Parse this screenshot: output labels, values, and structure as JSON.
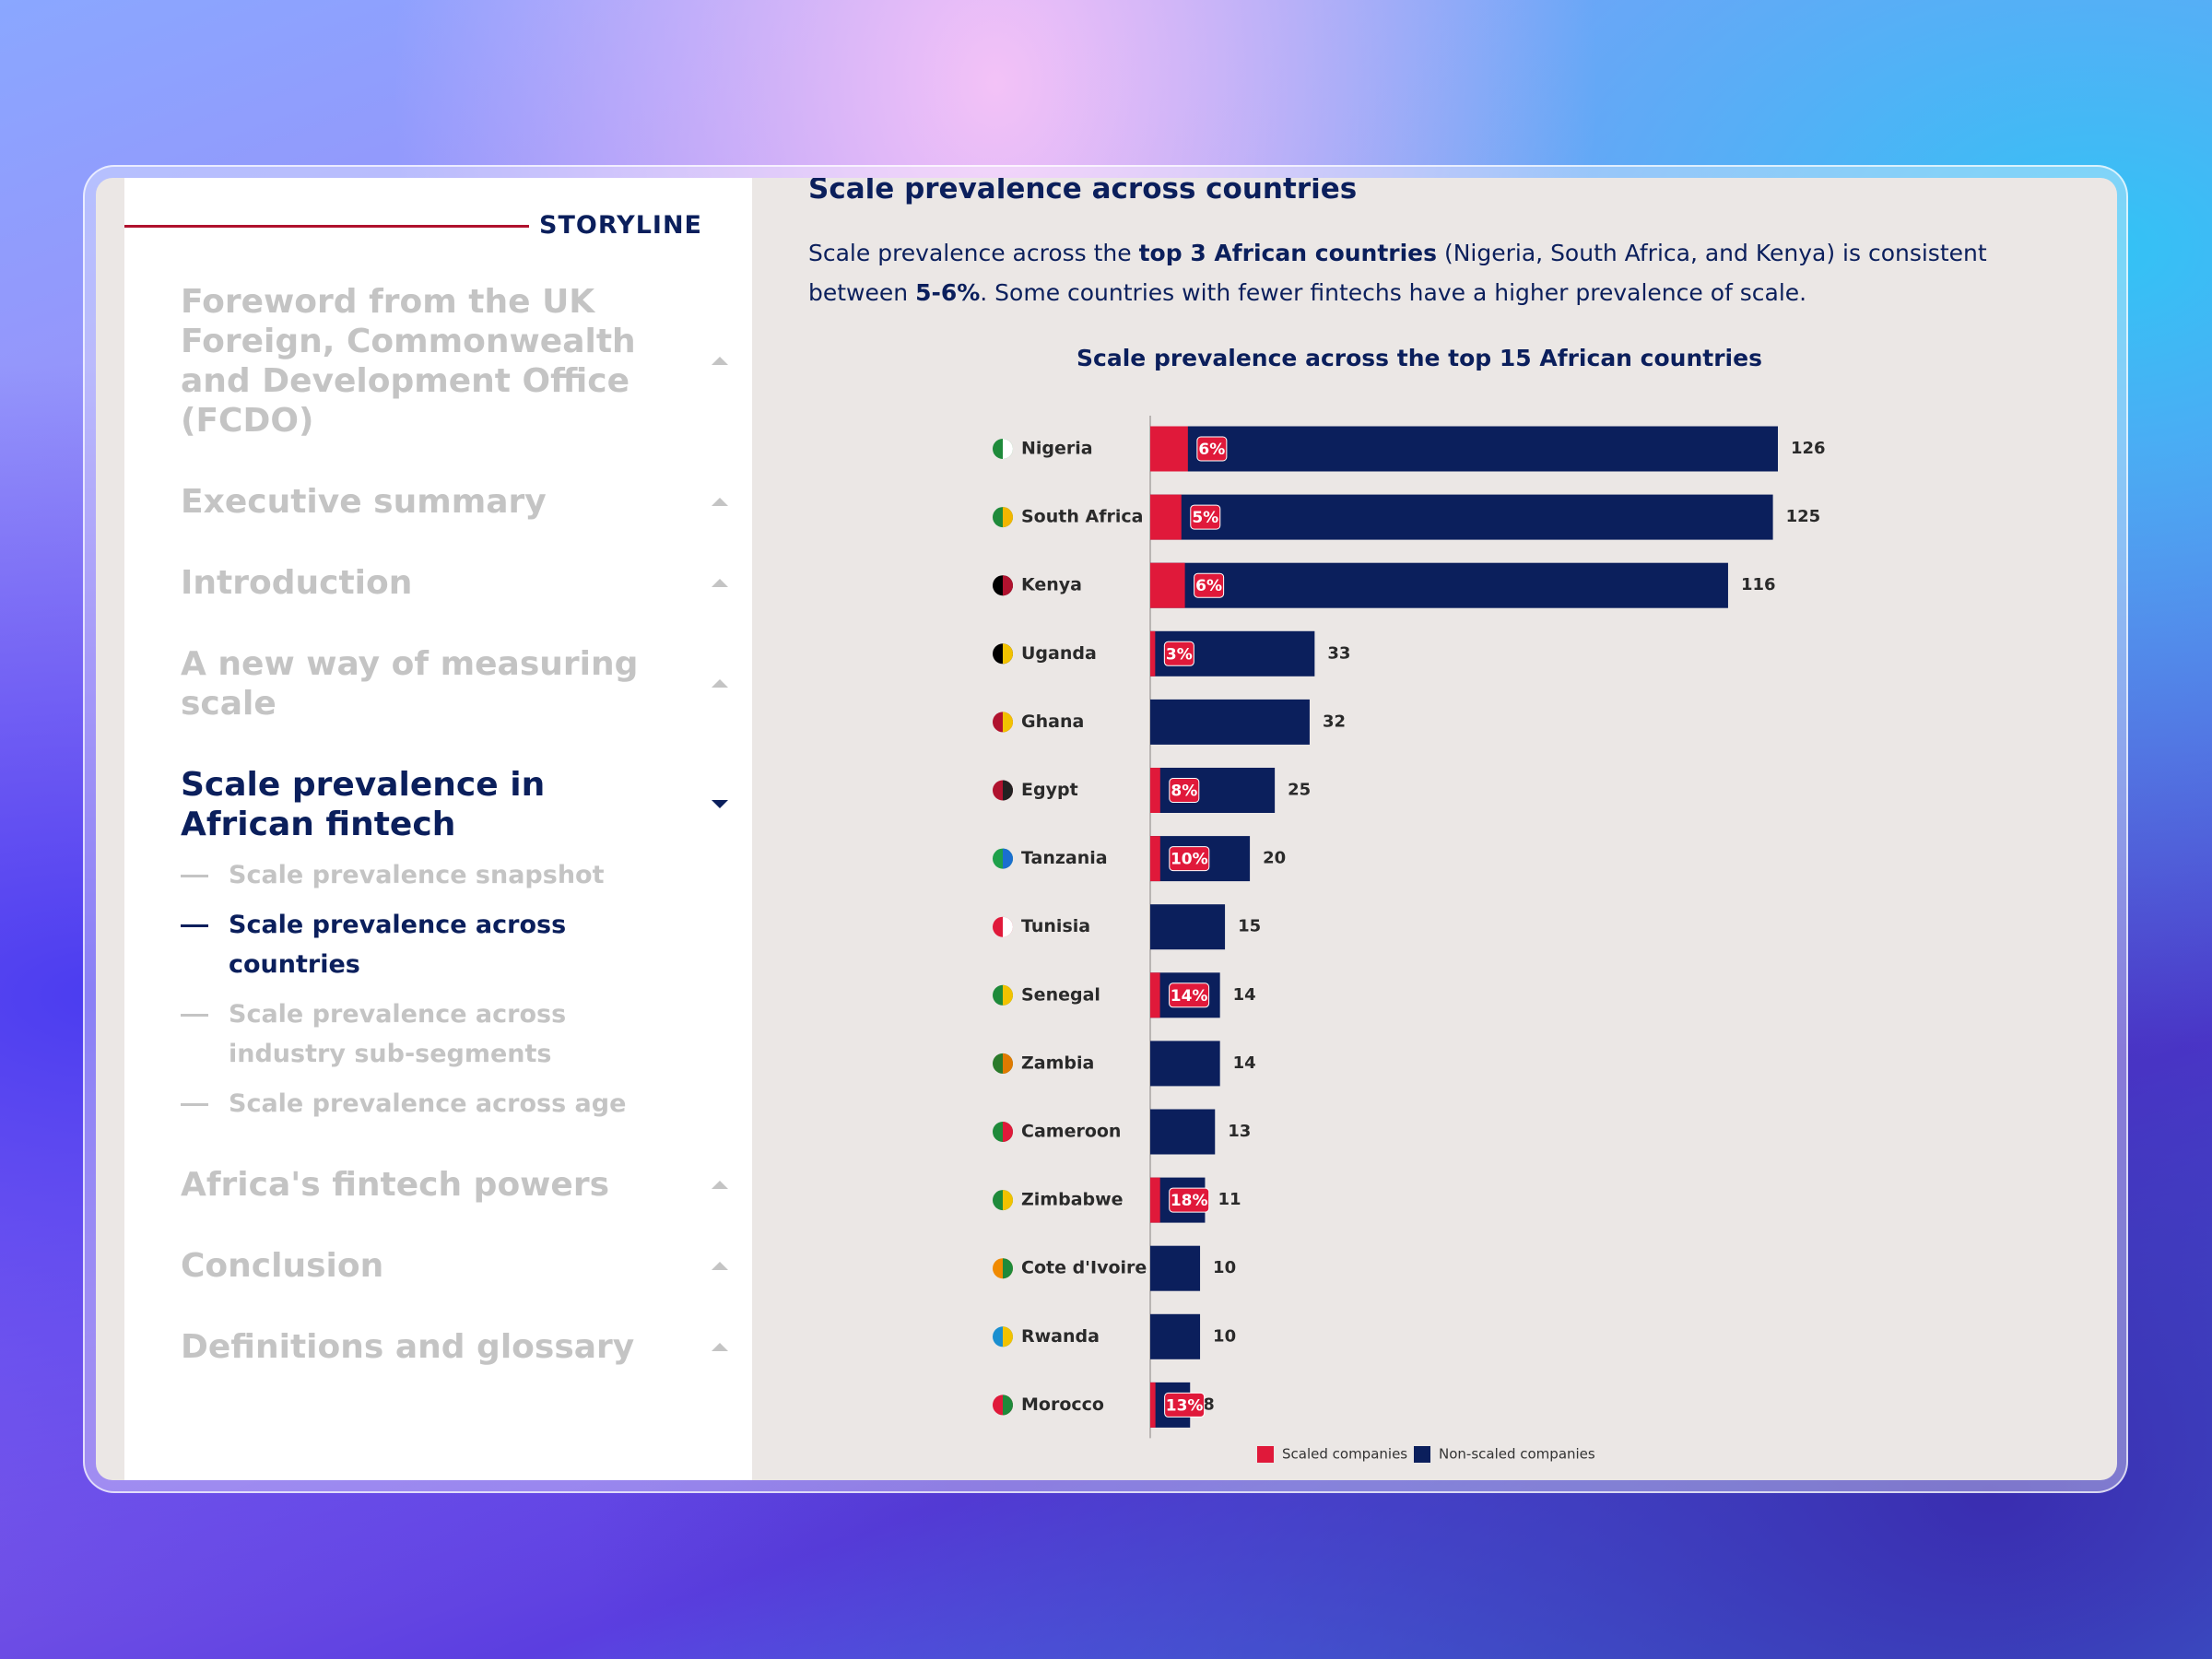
{
  "sidebar": {
    "heading": "STORYLINE",
    "items": [
      {
        "label": "Foreword from the UK Foreign, Commonwealth and Development Office (FCDO)",
        "active": false
      },
      {
        "label": "Executive summary",
        "active": false
      },
      {
        "label": "Introduction",
        "active": false
      },
      {
        "label": "A new way of measuring scale",
        "active": false
      },
      {
        "label": "Scale prevalence in African fintech",
        "active": true,
        "subitems": [
          {
            "label": "Scale prevalence snapshot",
            "active": false
          },
          {
            "label": "Scale prevalence across countries",
            "active": true
          },
          {
            "label": "Scale prevalence across industry sub-segments",
            "active": false
          },
          {
            "label": "Scale prevalence across age",
            "active": false
          }
        ]
      },
      {
        "label": "Africa's fintech powers",
        "active": false
      },
      {
        "label": "Conclusion",
        "active": false
      },
      {
        "label": "Definitions and glossary",
        "active": false
      }
    ]
  },
  "content": {
    "title": "Scale prevalence across countries",
    "paragraph": [
      {
        "text": "Scale prevalence across the ",
        "bold": false
      },
      {
        "text": "top 3 African countries",
        "bold": true
      },
      {
        "text": " (Nigeria, South Africa, and Kenya) is consistent between ",
        "bold": false
      },
      {
        "text": "5-6%",
        "bold": true
      },
      {
        "text": ". Some countries with fewer fintechs have a higher prevalence of scale.",
        "bold": false
      }
    ]
  },
  "chart_data": {
    "type": "bar",
    "orientation": "horizontal",
    "title": "Scale prevalence across the top 15 African countries",
    "categories": [
      "Nigeria",
      "South Africa",
      "Kenya",
      "Uganda",
      "Ghana",
      "Egypt",
      "Tanzania",
      "Tunisia",
      "Senegal",
      "Zambia",
      "Cameroon",
      "Zimbabwe",
      "Cote d'Ivoire",
      "Rwanda",
      "Morocco"
    ],
    "totals": [
      126,
      125,
      116,
      33,
      32,
      25,
      20,
      15,
      14,
      14,
      13,
      11,
      10,
      10,
      8
    ],
    "series": [
      {
        "name": "Scaled companies",
        "color": "#e0193a",
        "values": [
          6,
          5,
          6,
          3,
          null,
          8,
          10,
          null,
          14,
          null,
          null,
          18,
          null,
          null,
          13
        ],
        "value_labels": [
          "6%",
          "5%",
          "6%",
          "3%",
          null,
          "8%",
          "10%",
          null,
          "14%",
          null,
          null,
          "18%",
          null,
          null,
          "13%"
        ]
      },
      {
        "name": "Non-scaled companies",
        "color": "#0b1f5c"
      }
    ],
    "legend": "bottom"
  }
}
